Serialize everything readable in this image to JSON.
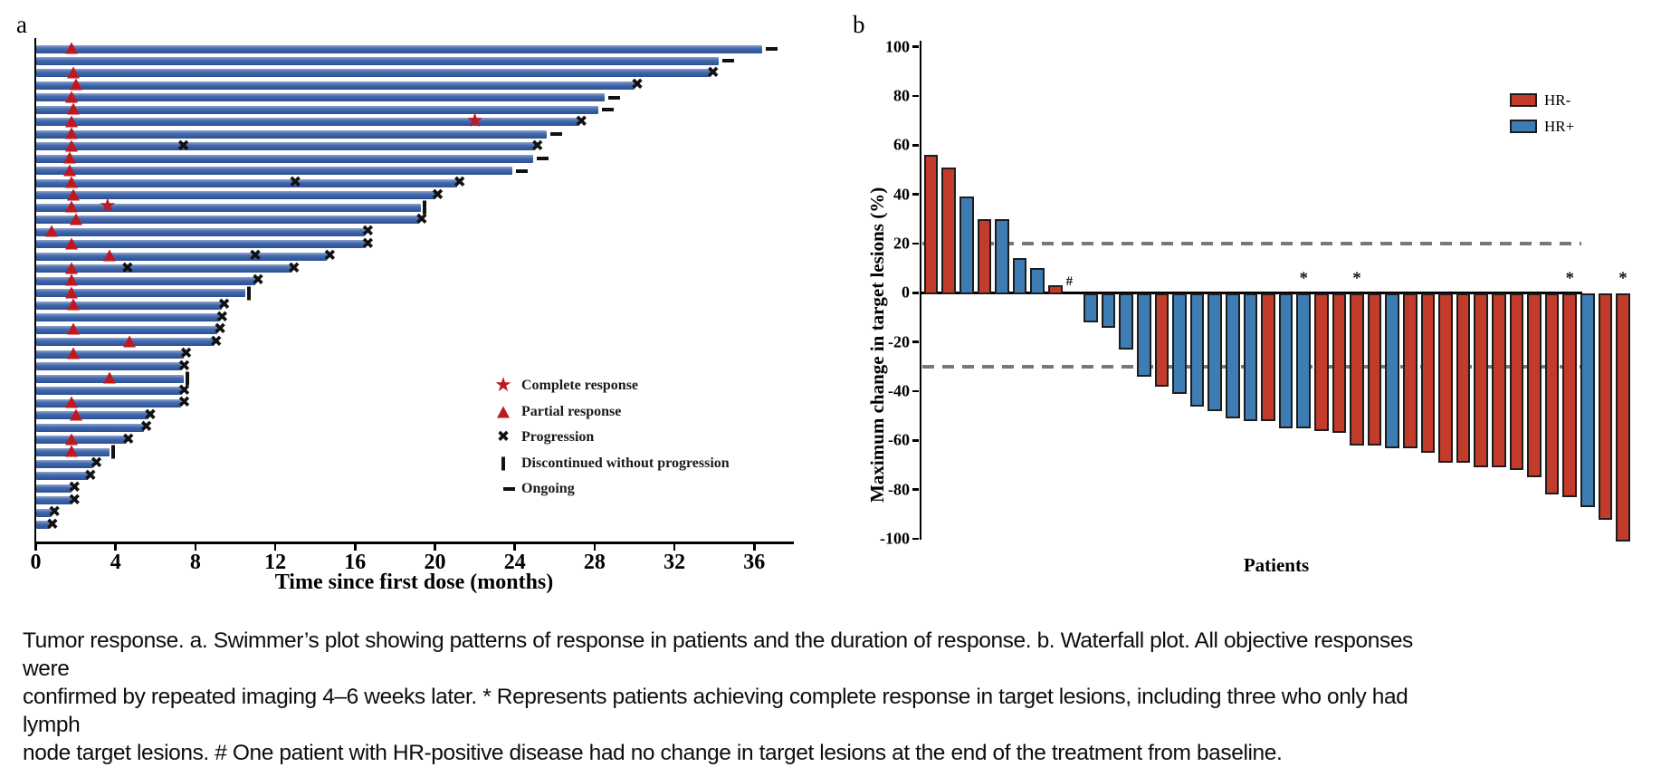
{
  "caption_lines": [
    "Tumor response. a. Swimmer’s plot showing patterns of response in patients and the duration of response. b. Waterfall plot. All objective responses were",
    "confirmed by repeated imaging 4–6 weeks later. * Represents patients achieving complete response in target lesions, including three who only had lymph",
    "node target lesions. # One patient with HR-positive disease had no change in target lesions at the end of the treatment from baseline."
  ],
  "chart_data": [
    {
      "type": "bar",
      "orientation": "horizontal",
      "panel_label": "a",
      "xlabel": "Time since first dose (months)",
      "xlim": [
        0,
        38
      ],
      "xticks": [
        0,
        4,
        8,
        12,
        16,
        20,
        24,
        28,
        32,
        36
      ],
      "bar_color": "#3a62a7",
      "marker_red": "#c0181f",
      "legend": [
        {
          "marker": "star",
          "label": "Complete response"
        },
        {
          "marker": "triangle",
          "label": "Partial response"
        },
        {
          "marker": "x",
          "label": "Progression"
        },
        {
          "marker": "vbar",
          "label": "Discontinued without progression"
        },
        {
          "marker": "dash",
          "label": "Ongoing"
        }
      ],
      "bars": [
        {
          "duration": 36.4,
          "partial_response_at": 1.8,
          "end_marker": "ongoing"
        },
        {
          "duration": 34.2,
          "end_marker": "ongoing"
        },
        {
          "duration": 33.8,
          "partial_response_at": 1.9,
          "end_marker": "progression"
        },
        {
          "duration": 30.0,
          "partial_response_at": 2.0,
          "end_marker": "progression"
        },
        {
          "duration": 28.5,
          "partial_response_at": 1.8,
          "end_marker": "ongoing"
        },
        {
          "duration": 28.2,
          "partial_response_at": 1.9,
          "end_marker": "ongoing"
        },
        {
          "duration": 27.2,
          "partial_response_at": 1.8,
          "complete_response_at": 22.0,
          "end_marker": "progression"
        },
        {
          "duration": 25.6,
          "partial_response_at": 1.8,
          "end_marker": "ongoing"
        },
        {
          "duration": 25.0,
          "partial_response_at": 1.8,
          "progression_marks": [
            7.4
          ],
          "end_marker": "progression"
        },
        {
          "duration": 24.9,
          "partial_response_at": 1.7,
          "end_marker": "ongoing"
        },
        {
          "duration": 23.9,
          "partial_response_at": 1.7,
          "end_marker": "ongoing"
        },
        {
          "duration": 21.1,
          "partial_response_at": 1.8,
          "progression_marks": [
            13.0
          ],
          "end_marker": "progression"
        },
        {
          "duration": 20.0,
          "partial_response_at": 1.9,
          "end_marker": "progression"
        },
        {
          "duration": 19.3,
          "partial_response_at": 1.8,
          "complete_response_at": 3.6,
          "end_marker": "discontinued"
        },
        {
          "duration": 19.2,
          "partial_response_at": 2.0,
          "end_marker": "progression"
        },
        {
          "duration": 16.5,
          "partial_response_at": 0.8,
          "end_marker": "progression"
        },
        {
          "duration": 16.5,
          "partial_response_at": 1.8,
          "end_marker": "progression"
        },
        {
          "duration": 14.6,
          "partial_response_at": 3.7,
          "progression_marks": [
            11.0
          ],
          "end_marker": "progression"
        },
        {
          "duration": 12.8,
          "partial_response_at": 1.8,
          "progression_marks": [
            4.6
          ],
          "end_marker": "progression"
        },
        {
          "duration": 11.0,
          "partial_response_at": 1.8,
          "end_marker": "progression"
        },
        {
          "duration": 10.5,
          "partial_response_at": 1.8,
          "end_marker": "discontinued"
        },
        {
          "duration": 9.3,
          "partial_response_at": 1.9,
          "end_marker": "progression"
        },
        {
          "duration": 9.2,
          "end_marker": "progression"
        },
        {
          "duration": 9.1,
          "partial_response_at": 1.9,
          "end_marker": "progression"
        },
        {
          "duration": 8.9,
          "partial_response_at": 4.7,
          "end_marker": "progression"
        },
        {
          "duration": 7.4,
          "partial_response_at": 1.9,
          "end_marker": "progression"
        },
        {
          "duration": 7.3,
          "end_marker": "progression"
        },
        {
          "duration": 7.4,
          "partial_response_at": 3.7,
          "end_marker": "discontinued"
        },
        {
          "duration": 7.3,
          "end_marker": "progression"
        },
        {
          "duration": 7.3,
          "partial_response_at": 1.8,
          "end_marker": "progression"
        },
        {
          "duration": 5.6,
          "partial_response_at": 2.0,
          "end_marker": "progression"
        },
        {
          "duration": 5.4,
          "end_marker": "progression"
        },
        {
          "duration": 4.5,
          "partial_response_at": 1.8,
          "end_marker": "progression"
        },
        {
          "duration": 3.7,
          "partial_response_at": 1.8,
          "end_marker": "discontinued"
        },
        {
          "duration": 2.9,
          "end_marker": "progression"
        },
        {
          "duration": 2.6,
          "end_marker": "progression"
        },
        {
          "duration": 1.8,
          "end_marker": "progression"
        },
        {
          "duration": 1.8,
          "end_marker": "progression"
        },
        {
          "duration": 0.8,
          "end_marker": "progression"
        },
        {
          "duration": 0.7,
          "end_marker": "progression"
        }
      ]
    },
    {
      "type": "bar",
      "orientation": "vertical",
      "panel_label": "b",
      "ylabel": "Maximum change in target lesions (%)",
      "xlabel": "Patients",
      "ylim": [
        -100,
        100
      ],
      "yticks": [
        100,
        80,
        60,
        40,
        20,
        0,
        -20,
        -40,
        -60,
        -80,
        -100
      ],
      "reference_lines": [
        20,
        -30
      ],
      "reference_line_color": "#787878",
      "colors": {
        "HR-": "#c23b2b",
        "HR+": "#3d7db3"
      },
      "legend": [
        {
          "label": "HR-",
          "group": "HR-"
        },
        {
          "label": "HR+",
          "group": "HR+"
        }
      ],
      "values": [
        56,
        51,
        39,
        30,
        30,
        14,
        10,
        3,
        0,
        -11,
        -13,
        -22,
        -33,
        -37,
        -40,
        -45,
        -47,
        -50,
        -51,
        -51,
        -54,
        -54,
        -55,
        -56,
        -61,
        -61,
        -62,
        -62,
        -64,
        -68,
        -68,
        -70,
        -70,
        -71,
        -74,
        -81,
        -82,
        -86,
        -91,
        -100
      ],
      "groups": [
        "HR-",
        "HR-",
        "HR+",
        "HR-",
        "HR+",
        "HR+",
        "HR+",
        "HR-",
        "HR+",
        "HR+",
        "HR+",
        "HR+",
        "HR+",
        "HR-",
        "HR+",
        "HR+",
        "HR+",
        "HR+",
        "HR+",
        "HR-",
        "HR+",
        "HR+",
        "HR-",
        "HR-",
        "HR-",
        "HR-",
        "HR+",
        "HR-",
        "HR-",
        "HR-",
        "HR-",
        "HR-",
        "HR-",
        "HR-",
        "HR-",
        "HR-",
        "HR-",
        "HR+",
        "HR-",
        "HR-"
      ],
      "annotations": [
        {
          "bar_index": 8,
          "symbol": "#"
        },
        {
          "bar_index": 21,
          "symbol": "*"
        },
        {
          "bar_index": 24,
          "symbol": "*"
        },
        {
          "bar_index": 36,
          "symbol": "*"
        },
        {
          "bar_index": 39,
          "symbol": "*"
        }
      ]
    }
  ]
}
